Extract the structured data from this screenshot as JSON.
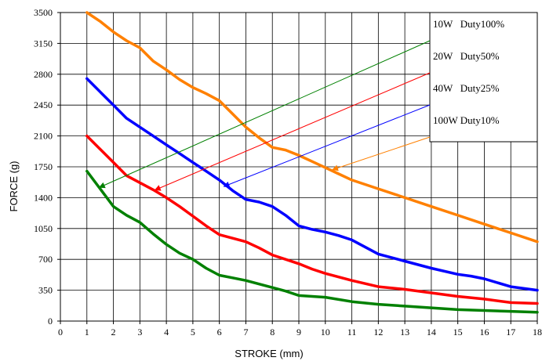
{
  "chart_data": {
    "type": "line",
    "xlabel": "STROKE (mm)",
    "ylabel": "FORCE (g)",
    "xlim": [
      0,
      18
    ],
    "ylim": [
      0,
      3500
    ],
    "xticks": [
      "0",
      "1",
      "2",
      "3",
      "4",
      "5",
      "6",
      "7",
      "8",
      "9",
      "10",
      "11",
      "12",
      "13",
      "14",
      "15",
      "16",
      "17",
      "18"
    ],
    "yticks": [
      "0",
      "350",
      "700",
      "1050",
      "1400",
      "1750",
      "2100",
      "2450",
      "2800",
      "3150",
      "3500"
    ],
    "grid": true,
    "legend_position": "top-right",
    "series": [
      {
        "name": "10W Duty100%",
        "color": "#008000",
        "x": [
          1,
          1.5,
          2,
          2.5,
          3,
          3.5,
          4,
          4.5,
          5,
          5.5,
          6,
          6.5,
          7,
          7.5,
          8,
          8.5,
          9,
          9.5,
          10,
          11,
          12,
          13,
          14,
          15,
          16,
          17,
          18
        ],
        "y": [
          1700,
          1500,
          1300,
          1200,
          1120,
          990,
          870,
          770,
          700,
          600,
          520,
          490,
          460,
          420,
          380,
          340,
          290,
          280,
          270,
          220,
          190,
          170,
          150,
          130,
          120,
          110,
          100
        ]
      },
      {
        "name": "20W Duty50%",
        "color": "#ff0000",
        "x": [
          1,
          1.5,
          2,
          2.5,
          3,
          3.5,
          4,
          4.5,
          5,
          5.5,
          6,
          6.5,
          7,
          7.5,
          8,
          8.5,
          9,
          9.5,
          10,
          11,
          12,
          13,
          14,
          15,
          16,
          17,
          18
        ],
        "y": [
          2100,
          1950,
          1800,
          1650,
          1570,
          1490,
          1400,
          1300,
          1190,
          1080,
          980,
          940,
          900,
          830,
          750,
          700,
          650,
          590,
          540,
          460,
          390,
          360,
          320,
          280,
          250,
          210,
          200
        ]
      },
      {
        "name": "40W Duty25%",
        "color": "#0000ff",
        "x": [
          1,
          1.5,
          2,
          2.5,
          3,
          3.5,
          4,
          4.5,
          5,
          5.5,
          6,
          6.5,
          7,
          7.5,
          8,
          8.5,
          9,
          9.5,
          10,
          10.5,
          11,
          12,
          13,
          14,
          15,
          15.5,
          16,
          17,
          18
        ],
        "y": [
          2750,
          2600,
          2450,
          2300,
          2200,
          2100,
          2000,
          1900,
          1800,
          1700,
          1600,
          1480,
          1380,
          1350,
          1300,
          1200,
          1080,
          1040,
          1010,
          970,
          920,
          760,
          680,
          600,
          530,
          510,
          480,
          390,
          350
        ]
      },
      {
        "name": "100W Duty10%",
        "color": "#ff8000",
        "x": [
          1,
          1.5,
          2,
          2.5,
          3,
          3.5,
          4,
          4.5,
          5,
          5.5,
          6,
          6.5,
          7,
          7.5,
          8,
          8.5,
          9,
          9.5,
          10,
          10.5,
          11,
          12,
          13,
          14,
          15,
          16,
          17,
          18
        ],
        "y": [
          3500,
          3400,
          3280,
          3180,
          3100,
          2950,
          2850,
          2740,
          2650,
          2580,
          2500,
          2350,
          2200,
          2080,
          1970,
          1940,
          1880,
          1810,
          1740,
          1670,
          1600,
          1500,
          1400,
          1300,
          1200,
          1100,
          1000,
          900
        ]
      }
    ],
    "legend": [
      {
        "label": "10W   Duty100%",
        "color": "#008000",
        "arrow_to": [
          1.5,
          1520
        ]
      },
      {
        "label": "20W   Duty50%",
        "color": "#ff0000",
        "arrow_to": [
          3.6,
          1490
        ]
      },
      {
        "label": "40W   Duty25%",
        "color": "#0000ff",
        "arrow_to": [
          6.2,
          1530
        ]
      },
      {
        "label": "100W Duty10%",
        "color": "#ff8000",
        "arrow_to": [
          10.3,
          1720
        ]
      }
    ]
  }
}
